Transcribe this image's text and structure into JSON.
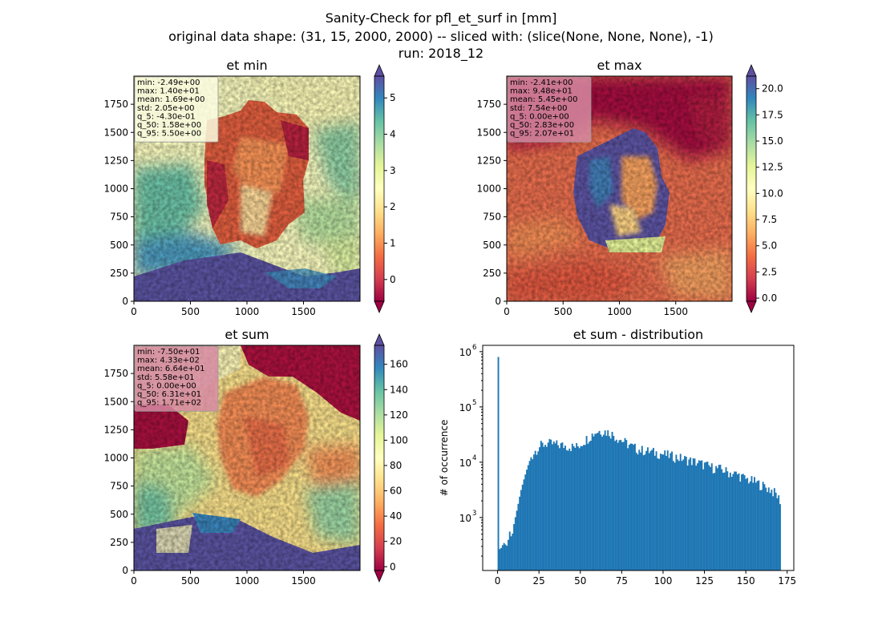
{
  "figure": {
    "suptitle_lines": [
      "Sanity-Check for pfl_et_surf in [mm]",
      "original data shape: (31, 15, 2000, 2000) -- sliced with: (slice(None, None, None), -1)",
      "run: 2018_12"
    ]
  },
  "chart_data": [
    {
      "type": "heatmap",
      "title": "et min",
      "xlim": [
        0,
        2000
      ],
      "ylim": [
        0,
        2000
      ],
      "xticks": [
        0,
        500,
        1000,
        1500
      ],
      "yticks": [
        0,
        250,
        500,
        750,
        1000,
        1250,
        1500,
        1750
      ],
      "colormap": "Spectral",
      "colorbar": {
        "min": -0.6,
        "max": 5.6,
        "ticks": [
          0,
          1,
          2,
          3,
          4,
          5
        ],
        "extend": "both"
      },
      "stats": [
        "min: -2.49e+00",
        "max: 1.40e+01",
        "mean: 1.69e+00",
        "std: 2.05e+00",
        "q_5: -4.30e-01",
        "q_50: 1.58e+00",
        "q_95: 5.50e+00"
      ],
      "stats_box_color": "#fcfde0"
    },
    {
      "type": "heatmap",
      "title": "et max",
      "xlim": [
        0,
        2000
      ],
      "ylim": [
        0,
        2000
      ],
      "xticks": [
        0,
        500,
        1000,
        1500
      ],
      "yticks": [
        0,
        250,
        500,
        750,
        1000,
        1250,
        1500,
        1750
      ],
      "colormap": "Spectral",
      "colorbar": {
        "min": -0.3,
        "max": 21.2,
        "ticks": [
          0.0,
          2.5,
          5.0,
          7.5,
          10.0,
          12.5,
          15.0,
          17.5,
          20.0
        ],
        "extend": "both",
        "tick_decimals": 1
      },
      "stats": [
        "min: -2.41e+00",
        "max: 9.48e+01",
        "mean: 5.45e+00",
        "std: 7.54e+00",
        "q_5: 0.00e+00",
        "q_50: 2.83e+00",
        "q_95: 2.07e+01"
      ],
      "stats_box_color": "#d68aa2"
    },
    {
      "type": "heatmap",
      "title": "et sum",
      "xlim": [
        0,
        2000
      ],
      "ylim": [
        0,
        2000
      ],
      "xticks": [
        0,
        500,
        1000,
        1500
      ],
      "yticks": [
        0,
        250,
        500,
        750,
        1000,
        1250,
        1500,
        1750
      ],
      "colormap": "Spectral",
      "colorbar": {
        "min": -3,
        "max": 175,
        "ticks": [
          0,
          20,
          40,
          60,
          80,
          100,
          120,
          140,
          160
        ],
        "extend": "both"
      },
      "stats": [
        "min: -7.50e+01",
        "max: 4.33e+02",
        "mean: 6.64e+01",
        "std: 5.58e+01",
        "q_5: 0.00e+00",
        "q_50: 6.31e+01",
        "q_95: 1.71e+02"
      ],
      "stats_box_color": "#d68aa2"
    },
    {
      "type": "bar",
      "title": "et sum - distribution",
      "ylabel": "# of occurrence",
      "yscale": "log",
      "xlim": [
        -9,
        179
      ],
      "ylim": [
        110,
        1300000
      ],
      "xticks": [
        0,
        25,
        50,
        75,
        100,
        125,
        150,
        175
      ],
      "yticks_label": [
        "10",
        "10",
        "10",
        "10"
      ],
      "yticks_exp": [
        "3",
        "4",
        "5",
        "6"
      ],
      "yticks_value": [
        1000,
        10000,
        100000,
        1000000
      ],
      "bar_color": "#1f77b4",
      "bin_width": 0.86,
      "profile_x": [
        0,
        0.5,
        1.5,
        2.5,
        4,
        5.5,
        6.5,
        7.5,
        8.5,
        10,
        12,
        14,
        16,
        18,
        20,
        22,
        24,
        26,
        28,
        30,
        35,
        40,
        45,
        48,
        50,
        52,
        55,
        58,
        60,
        62,
        65,
        68,
        70,
        72,
        75,
        78,
        80,
        85,
        90,
        95,
        100,
        105,
        110,
        115,
        120,
        125,
        130,
        135,
        140,
        145,
        150,
        155,
        160,
        165,
        168,
        170,
        171
      ],
      "profile_y": [
        800000,
        350,
        250,
        300,
        350,
        300,
        400,
        600,
        400,
        800,
        1500,
        3000,
        5000,
        8000,
        12000,
        15000,
        18000,
        20000,
        21000,
        22000,
        21000,
        20000,
        19000,
        19000,
        21000,
        24000,
        28000,
        33000,
        36000,
        37000,
        36000,
        34000,
        31000,
        28000,
        25000,
        22000,
        20000,
        17000,
        16000,
        15000,
        14000,
        13000,
        12000,
        11000,
        10000,
        9000,
        8000,
        7500,
        6500,
        6000,
        5000,
        4500,
        3800,
        3200,
        2700,
        2200,
        2000
      ]
    }
  ]
}
